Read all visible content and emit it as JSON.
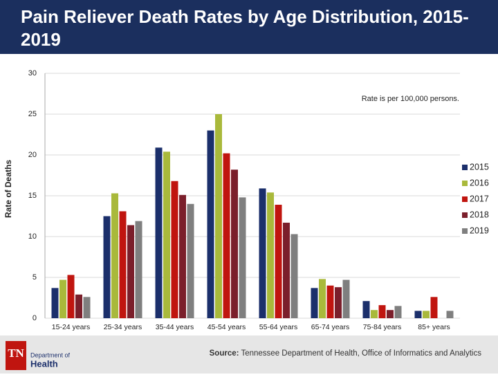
{
  "chart_data": {
    "type": "bar",
    "title": "Pain Reliever Death Rates by Age Distribution, 2015-2019",
    "annotation": "Rate is per 100,000 persons.",
    "y_label": "Rate of Deaths",
    "categories": [
      "15-24 years",
      "25-34 years",
      "35-44 years",
      "45-54 years",
      "55-64 years",
      "65-74 years",
      "75-84 years",
      "85+ years"
    ],
    "series": [
      {
        "name": "2015",
        "color": "#1b2f6b",
        "values": [
          3.7,
          12.5,
          20.9,
          23.0,
          15.9,
          3.7,
          2.1,
          0.9
        ]
      },
      {
        "name": "2016",
        "color": "#a9b93b",
        "values": [
          4.7,
          15.3,
          20.4,
          25.0,
          15.4,
          4.8,
          1.0,
          0.9
        ]
      },
      {
        "name": "2017",
        "color": "#c0150f",
        "values": [
          5.3,
          13.1,
          16.8,
          20.2,
          13.9,
          4.0,
          1.6,
          2.6
        ]
      },
      {
        "name": "2018",
        "color": "#7b1f2b",
        "values": [
          2.9,
          11.4,
          15.1,
          18.2,
          11.7,
          3.8,
          1.0,
          null
        ]
      },
      {
        "name": "2019",
        "color": "#7f7f7f",
        "values": [
          2.6,
          11.9,
          14.0,
          14.8,
          10.3,
          4.7,
          1.5,
          0.9
        ]
      }
    ],
    "ylim": [
      0,
      30
    ],
    "yticks": [
      0,
      5,
      10,
      15,
      20,
      25,
      30
    ],
    "grid": true,
    "legend": "right"
  },
  "footer": {
    "logo_mark": "TN",
    "logo_line1": "Department of",
    "logo_line2": "Health",
    "source_label": "Source:",
    "source": "Tennessee Department of Health, Office of Informatics and Analytics"
  }
}
